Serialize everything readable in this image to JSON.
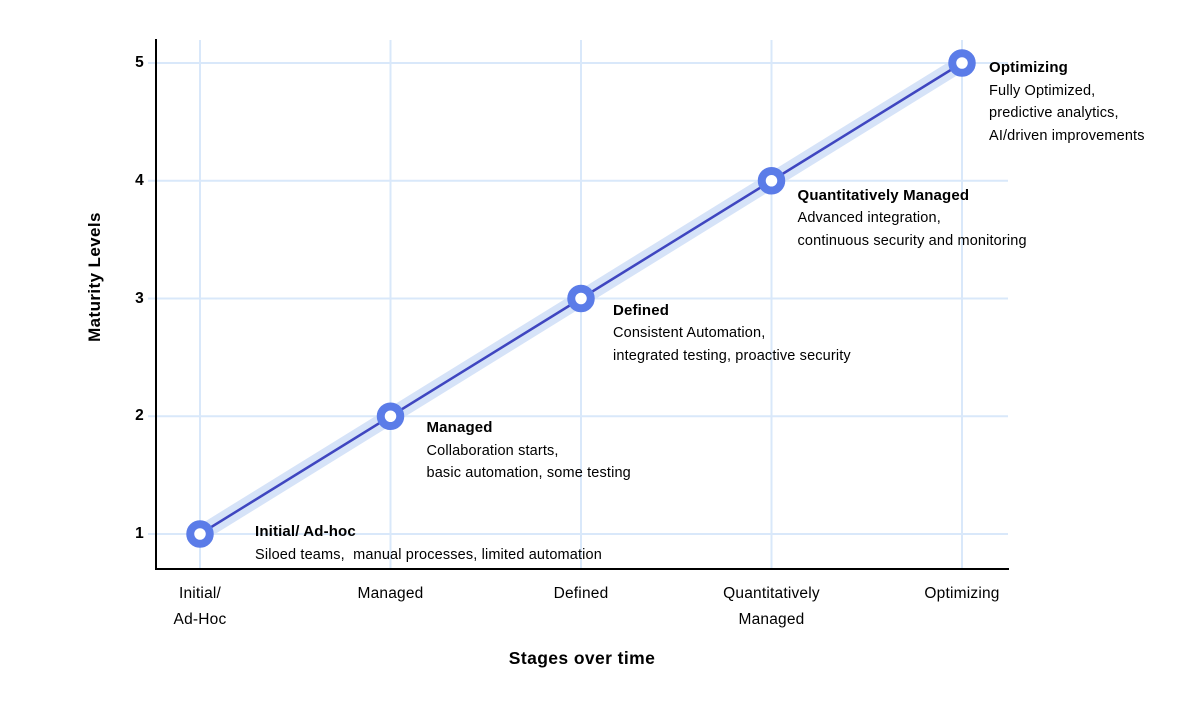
{
  "chart_data": {
    "type": "line",
    "title": "",
    "xlabel": "Stages over time",
    "ylabel": "Maturity Levels",
    "categories": [
      "Initial/\nAd-Hoc",
      "Managed",
      "Defined",
      "Quantitatively\nManaged",
      "Optimizing"
    ],
    "values": [
      1,
      2,
      3,
      4,
      5
    ],
    "yticks": [
      1,
      2,
      3,
      4,
      5
    ],
    "ylim": [
      1,
      5
    ],
    "grid": true,
    "legend": false,
    "annotations": [
      {
        "title": "Initial/ Ad-hoc",
        "lines": [
          "Siloed teams,  manual processes, limited automation"
        ]
      },
      {
        "title": "Managed",
        "lines": [
          "Collaboration starts,",
          "basic automation, some testing"
        ]
      },
      {
        "title": "Defined",
        "lines": [
          "Consistent Automation,",
          "integrated testing, proactive security"
        ]
      },
      {
        "title": "Quantitatively Managed",
        "lines": [
          "Advanced integration,",
          "continuous security and monitoring"
        ]
      },
      {
        "title": "Optimizing",
        "lines": [
          "Fully Optimized,",
          "predictive analytics,",
          "AI/driven improvements"
        ]
      }
    ],
    "colors": {
      "line": "#3f46c0",
      "band": "#d6e3f8",
      "grid": "#d9e8fa",
      "marker_ring": "#5b7ce8",
      "marker_fill": "#ffffff",
      "axis": "#000000",
      "text": "#000000",
      "background": "#ffffff"
    }
  }
}
